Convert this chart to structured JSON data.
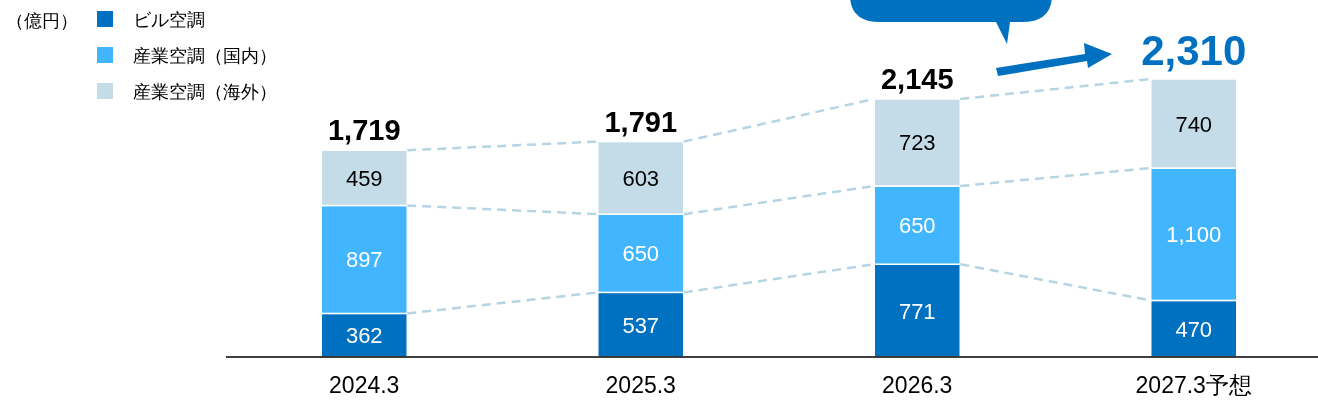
{
  "chart_data": {
    "type": "bar",
    "stacked": true,
    "annotations": [
      "（億円）"
    ],
    "legend": "top left",
    "categories": [
      "2024.3",
      "2025.3",
      "2026.3",
      "2027.3予想"
    ],
    "series": [
      {
        "name": "ビル空調",
        "color": "#0070c0",
        "values": [
          362,
          537,
          771,
          470
        ],
        "value_labels": [
          "362",
          "537",
          "771",
          "470"
        ]
      },
      {
        "name": "産業空調（国内）",
        "color": "#41b6ff",
        "values": [
          897,
          650,
          650,
          1100
        ],
        "value_labels": [
          "897",
          "650",
          "650",
          "1,100"
        ]
      },
      {
        "name": "産業空調（海外）",
        "color": "#c3dce8",
        "values": [
          459,
          603,
          723,
          740
        ],
        "value_labels": [
          "459",
          "603",
          "723",
          "740"
        ]
      }
    ],
    "totals": [
      "1,719",
      "1,791",
      "2,145",
      "2,310"
    ]
  }
}
